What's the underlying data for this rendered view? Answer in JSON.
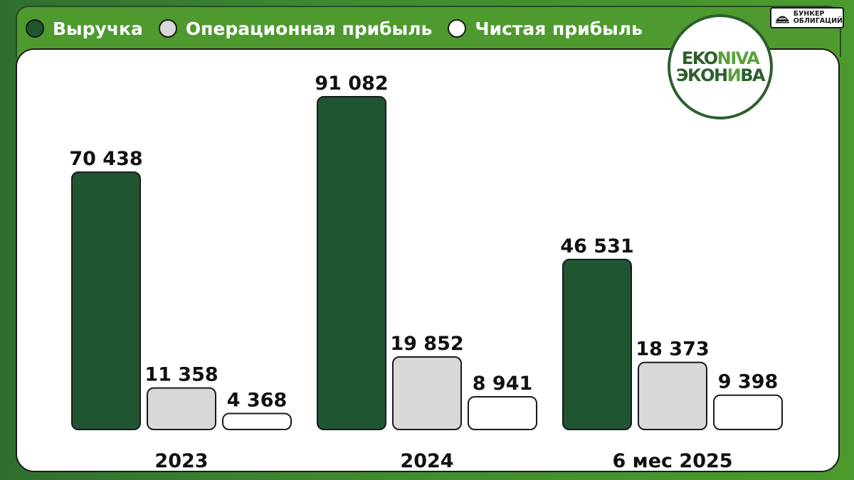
{
  "legend": [
    {
      "label": "Выручка",
      "color": "#1f5530"
    },
    {
      "label": "Операционная прибыль",
      "color": "#d8d8d8"
    },
    {
      "label": "Чистая прибыль",
      "color": "#ffffff"
    }
  ],
  "badge": {
    "text": "БУНКЕР\nОБЛИГАЦИЙ",
    "icon": "bunker-icon"
  },
  "logo": {
    "line1_a": "EKO",
    "line1_b": "NIVA",
    "line2_a": "ЭКОН",
    "line2_b": "И",
    "line2_c": "ВА"
  },
  "colors": {
    "revenue": "#1f5530",
    "operating": "#d8d8d8",
    "net": "#ffffff",
    "frame_green": "#4e9a2f",
    "logo_dark": "#2d5f2d",
    "logo_light": "#5aa13a"
  },
  "chart_data": {
    "type": "bar",
    "categories": [
      "2023",
      "2024",
      "6 мес 2025"
    ],
    "series": [
      {
        "name": "Выручка",
        "values": [
          70438,
          91082,
          46531
        ],
        "labels": [
          "70 438",
          "91 082",
          "46 531"
        ]
      },
      {
        "name": "Операционная прибыль",
        "values": [
          11358,
          19852,
          18373
        ],
        "labels": [
          "11 358",
          "19 852",
          "18 373"
        ]
      },
      {
        "name": "Чистая прибыль",
        "values": [
          4368,
          8941,
          9398
        ],
        "labels": [
          "4 368",
          "8 941",
          "9 398"
        ]
      }
    ],
    "ylim": [
      0,
      91082
    ],
    "grid": false,
    "legend_position": "top-left"
  }
}
